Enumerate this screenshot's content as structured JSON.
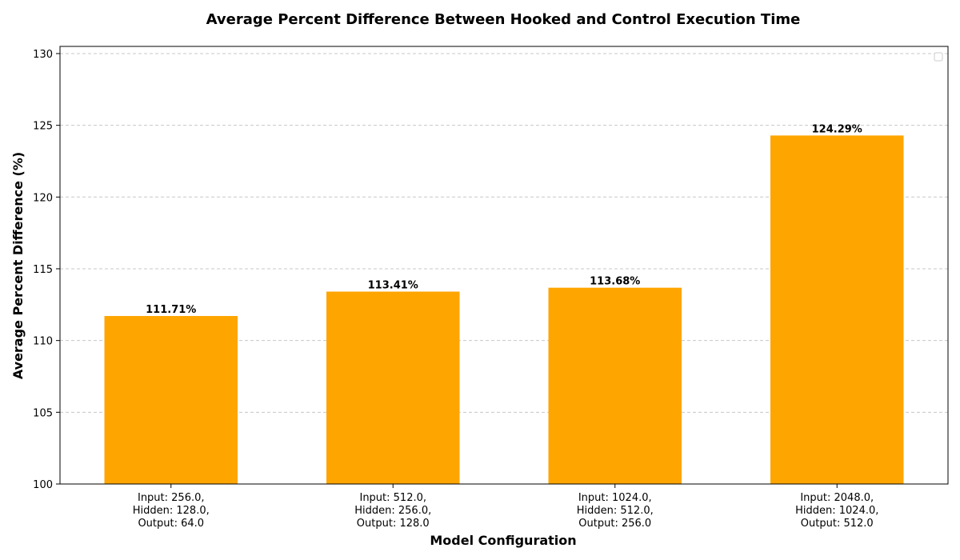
{
  "chart_data": {
    "type": "bar",
    "title": "Average Percent Difference Between Hooked and Control Execution Time",
    "xlabel": "Model Configuration",
    "ylabel": "Average Percent Difference (%)",
    "categories": [
      [
        "Input: 256.0,",
        "Hidden: 128.0,",
        "Output: 64.0"
      ],
      [
        "Input: 512.0,",
        "Hidden: 256.0,",
        "Output: 128.0"
      ],
      [
        "Input: 1024.0,",
        "Hidden: 512.0,",
        "Output: 256.0"
      ],
      [
        "Input: 2048.0,",
        "Hidden: 1024.0,",
        "Output: 512.0"
      ]
    ],
    "values": [
      111.71,
      113.41,
      113.68,
      124.29
    ],
    "data_labels": [
      "111.71%",
      "113.41%",
      "113.68%",
      "124.29%"
    ],
    "ylim": [
      100,
      130.5
    ],
    "yticks": [
      "100",
      "105",
      "110",
      "115",
      "120",
      "125",
      "130"
    ],
    "grid": "horizontal dashed",
    "legend": "top-right (empty)",
    "bar_color": "#ffa500"
  }
}
